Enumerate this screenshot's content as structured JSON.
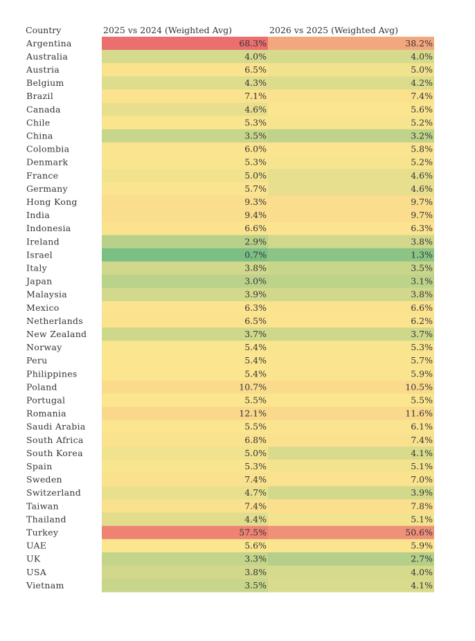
{
  "chart_data": {
    "type": "heatmap",
    "title": "",
    "row_header": "Country",
    "columns": [
      "2025 vs 2024 (Weighted Avg)",
      "2026 vs 2025 (Weighted Avg)"
    ],
    "value_suffix": "%",
    "color_scale": {
      "low_color": "#7cbf85",
      "mid_color": "#fbe58f",
      "high_color": "#eb6f6f"
    },
    "rows": [
      {
        "country": "Argentina",
        "values": [
          68.3,
          38.2
        ]
      },
      {
        "country": "Australia",
        "values": [
          4.0,
          4.0
        ]
      },
      {
        "country": "Austria",
        "values": [
          6.5,
          5.0
        ]
      },
      {
        "country": "Belgium",
        "values": [
          4.3,
          4.2
        ]
      },
      {
        "country": "Brazil",
        "values": [
          7.1,
          7.4
        ]
      },
      {
        "country": "Canada",
        "values": [
          4.6,
          5.6
        ]
      },
      {
        "country": "Chile",
        "values": [
          5.3,
          5.2
        ]
      },
      {
        "country": "China",
        "values": [
          3.5,
          3.2
        ]
      },
      {
        "country": "Colombia",
        "values": [
          6.0,
          5.8
        ]
      },
      {
        "country": "Denmark",
        "values": [
          5.3,
          5.2
        ]
      },
      {
        "country": "France",
        "values": [
          5.0,
          4.6
        ]
      },
      {
        "country": "Germany",
        "values": [
          5.7,
          4.6
        ]
      },
      {
        "country": "Hong Kong",
        "values": [
          9.3,
          9.7
        ]
      },
      {
        "country": "India",
        "values": [
          9.4,
          9.7
        ]
      },
      {
        "country": "Indonesia",
        "values": [
          6.6,
          6.3
        ]
      },
      {
        "country": "Ireland",
        "values": [
          2.9,
          3.8
        ]
      },
      {
        "country": "Israel",
        "values": [
          0.7,
          1.3
        ]
      },
      {
        "country": "Italy",
        "values": [
          3.8,
          3.5
        ]
      },
      {
        "country": "Japan",
        "values": [
          3.0,
          3.1
        ]
      },
      {
        "country": "Malaysia",
        "values": [
          3.9,
          3.8
        ]
      },
      {
        "country": "Mexico",
        "values": [
          6.3,
          6.6
        ]
      },
      {
        "country": "Netherlands",
        "values": [
          6.5,
          6.2
        ]
      },
      {
        "country": "New Zealand",
        "values": [
          3.7,
          3.7
        ]
      },
      {
        "country": "Norway",
        "values": [
          5.4,
          5.3
        ]
      },
      {
        "country": "Peru",
        "values": [
          5.4,
          5.7
        ]
      },
      {
        "country": "Philippines",
        "values": [
          5.4,
          5.9
        ]
      },
      {
        "country": "Poland",
        "values": [
          10.7,
          10.5
        ]
      },
      {
        "country": "Portugal",
        "values": [
          5.5,
          5.5
        ]
      },
      {
        "country": "Romania",
        "values": [
          12.1,
          11.6
        ]
      },
      {
        "country": "Saudi Arabia",
        "values": [
          5.5,
          6.1
        ]
      },
      {
        "country": "South Africa",
        "values": [
          6.8,
          7.4
        ]
      },
      {
        "country": "South Korea",
        "values": [
          5.0,
          4.1
        ]
      },
      {
        "country": "Spain",
        "values": [
          5.3,
          5.1
        ]
      },
      {
        "country": "Sweden",
        "values": [
          7.4,
          7.0
        ]
      },
      {
        "country": "Switzerland",
        "values": [
          4.7,
          3.9
        ]
      },
      {
        "country": "Taiwan",
        "values": [
          7.4,
          7.8
        ]
      },
      {
        "country": "Thailand",
        "values": [
          4.4,
          5.1
        ]
      },
      {
        "country": "Turkey",
        "values": [
          57.5,
          50.6
        ]
      },
      {
        "country": "UAE",
        "values": [
          5.6,
          5.9
        ]
      },
      {
        "country": "UK",
        "values": [
          3.3,
          2.7
        ]
      },
      {
        "country": "USA",
        "values": [
          3.8,
          4.0
        ]
      },
      {
        "country": "Vietnam",
        "values": [
          3.5,
          4.1
        ]
      }
    ]
  }
}
